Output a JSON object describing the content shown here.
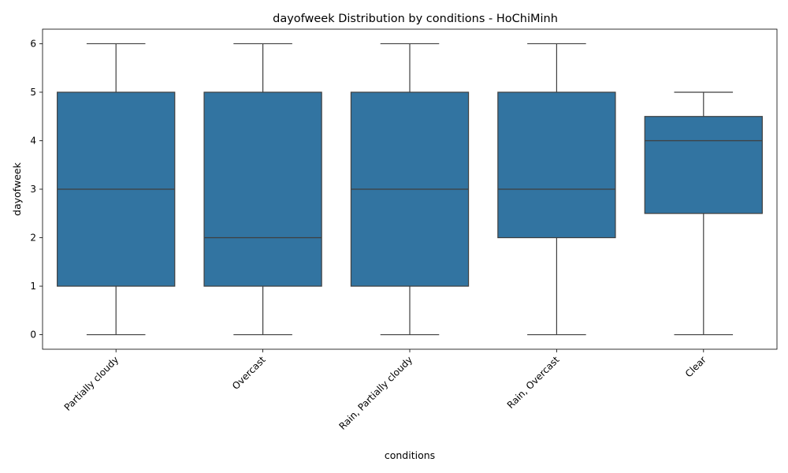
{
  "chart_data": {
    "type": "box",
    "title": "dayofweek Distribution by conditions - HoChiMinh",
    "xlabel": "conditions",
    "ylabel": "dayofweek",
    "ylim": [
      -0.3,
      6.3
    ],
    "yticks": [
      0,
      1,
      2,
      3,
      4,
      5,
      6
    ],
    "grid": false,
    "box_color": "#3274a1",
    "line_color": "#3f3f3f",
    "categories": [
      "Partially cloudy",
      "Overcast",
      "Rain, Partially cloudy",
      "Rain, Overcast",
      "Clear"
    ],
    "boxes": [
      {
        "category": "Partially cloudy",
        "whisker_low": 0,
        "q1": 1,
        "median": 3,
        "q3": 5,
        "whisker_high": 6
      },
      {
        "category": "Overcast",
        "whisker_low": 0,
        "q1": 1,
        "median": 2,
        "q3": 5,
        "whisker_high": 6
      },
      {
        "category": "Rain, Partially cloudy",
        "whisker_low": 0,
        "q1": 1,
        "median": 3,
        "q3": 5,
        "whisker_high": 6
      },
      {
        "category": "Rain, Overcast",
        "whisker_low": 0,
        "q1": 2,
        "median": 3,
        "q3": 5,
        "whisker_high": 6
      },
      {
        "category": "Clear",
        "whisker_low": 0,
        "q1": 2.5,
        "median": 4,
        "q3": 4.5,
        "whisker_high": 5
      }
    ]
  }
}
